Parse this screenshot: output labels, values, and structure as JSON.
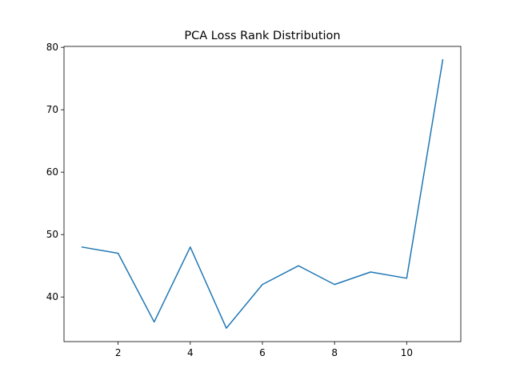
{
  "chart_data": {
    "type": "line",
    "title": "PCA Loss Rank Distribution",
    "xlabel": "",
    "ylabel": "",
    "x": [
      1,
      2,
      3,
      4,
      5,
      6,
      7,
      8,
      9,
      10,
      11
    ],
    "series": [
      {
        "values": [
          48,
          47,
          36,
          48,
          35,
          42,
          45,
          42,
          44,
          43,
          78
        ],
        "color": "#1f77b4"
      }
    ],
    "xlim": [
      0.5,
      11.5
    ],
    "ylim": [
      32.85,
      80.15
    ],
    "xticks": [
      2,
      4,
      6,
      8,
      10
    ],
    "yticks": [
      40,
      50,
      60,
      70,
      80
    ],
    "grid": false,
    "legend": "none"
  }
}
